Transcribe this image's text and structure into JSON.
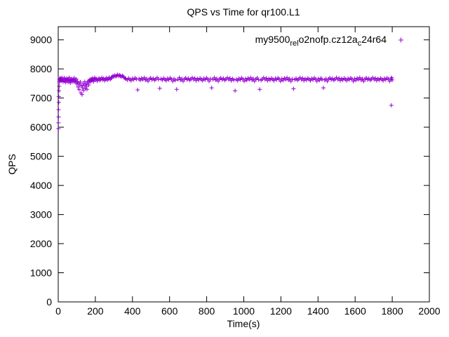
{
  "chart": {
    "title": "QPS vs Time for qr100.L1",
    "xlabel": "Time(s)",
    "ylabel": "QPS"
  },
  "chart_data": {
    "type": "scatter",
    "title": "QPS vs Time for qr100.L1",
    "xlabel": "Time(s)",
    "ylabel": "QPS",
    "xlim": [
      0,
      2000
    ],
    "ylim": [
      0,
      9450
    ],
    "xticks": [
      0,
      200,
      400,
      600,
      800,
      1000,
      1200,
      1400,
      1600,
      1800,
      2000
    ],
    "yticks": [
      0,
      1000,
      2000,
      3000,
      4000,
      5000,
      6000,
      7000,
      8000,
      9000
    ],
    "grid": false,
    "marker": "plus",
    "legend_position": "top-right-inside",
    "legend_parts": [
      {
        "text": "my9500",
        "sub": false
      },
      {
        "text": "rel",
        "sub": true
      },
      {
        "text": "o2nofp.cz12a",
        "sub": false
      },
      {
        "text": "c",
        "sub": true
      },
      {
        "text": "24r64",
        "sub": false
      }
    ],
    "series": [
      {
        "name": "my9500_rel_o2nofp.cz12a_c24r64",
        "color": "#9400D3",
        "points": [
          [
            1,
            5950
          ],
          [
            1,
            6150
          ],
          [
            2,
            6350
          ],
          [
            2,
            6600
          ],
          [
            3,
            6850
          ],
          [
            3,
            7050
          ],
          [
            4,
            7250
          ],
          [
            5,
            7400
          ],
          [
            6,
            7550
          ],
          [
            7,
            7650
          ],
          [
            8,
            7600
          ],
          [
            10,
            7680
          ],
          [
            12,
            7620
          ],
          [
            14,
            7660
          ],
          [
            16,
            7590
          ],
          [
            18,
            7640
          ],
          [
            20,
            7700
          ],
          [
            23,
            7610
          ],
          [
            26,
            7560
          ],
          [
            29,
            7630
          ],
          [
            32,
            7690
          ],
          [
            35,
            7580
          ],
          [
            38,
            7650
          ],
          [
            41,
            7540
          ],
          [
            44,
            7620
          ],
          [
            47,
            7670
          ],
          [
            50,
            7600
          ],
          [
            53,
            7550
          ],
          [
            56,
            7640
          ],
          [
            59,
            7700
          ],
          [
            62,
            7590
          ],
          [
            65,
            7520
          ],
          [
            68,
            7610
          ],
          [
            71,
            7660
          ],
          [
            74,
            7580
          ],
          [
            77,
            7630
          ],
          [
            80,
            7560
          ],
          [
            83,
            7620
          ],
          [
            86,
            7690
          ],
          [
            89,
            7570
          ],
          [
            92,
            7610
          ],
          [
            95,
            7540
          ],
          [
            98,
            7650
          ],
          [
            101,
            7480
          ],
          [
            104,
            7560
          ],
          [
            107,
            7380
          ],
          [
            110,
            7520
          ],
          [
            113,
            7290
          ],
          [
            116,
            7450
          ],
          [
            119,
            7550
          ],
          [
            122,
            7180
          ],
          [
            125,
            7420
          ],
          [
            128,
            7120
          ],
          [
            131,
            7350
          ],
          [
            134,
            7500
          ],
          [
            137,
            7260
          ],
          [
            140,
            7440
          ],
          [
            143,
            7560
          ],
          [
            146,
            7330
          ],
          [
            149,
            7480
          ],
          [
            152,
            7400
          ],
          [
            155,
            7300
          ],
          [
            158,
            7520
          ],
          [
            161,
            7570
          ],
          [
            164,
            7450
          ],
          [
            167,
            7610
          ],
          [
            170,
            7560
          ],
          [
            173,
            7640
          ],
          [
            176,
            7580
          ],
          [
            179,
            7650
          ],
          [
            182,
            7600
          ],
          [
            185,
            7680
          ],
          [
            188,
            7630
          ],
          [
            191,
            7570
          ],
          [
            194,
            7650
          ],
          [
            197,
            7700
          ],
          [
            200,
            7620
          ],
          [
            205,
            7660
          ],
          [
            210,
            7590
          ],
          [
            215,
            7640
          ],
          [
            220,
            7680
          ],
          [
            225,
            7610
          ],
          [
            230,
            7650
          ],
          [
            235,
            7700
          ],
          [
            240,
            7630
          ],
          [
            245,
            7670
          ],
          [
            250,
            7600
          ],
          [
            255,
            7650
          ],
          [
            260,
            7690
          ],
          [
            265,
            7620
          ],
          [
            270,
            7660
          ],
          [
            275,
            7710
          ],
          [
            280,
            7640
          ],
          [
            285,
            7680
          ],
          [
            290,
            7720
          ],
          [
            295,
            7760
          ],
          [
            300,
            7730
          ],
          [
            305,
            7780
          ],
          [
            310,
            7740
          ],
          [
            315,
            7770
          ],
          [
            320,
            7800
          ],
          [
            325,
            7750
          ],
          [
            330,
            7790
          ],
          [
            335,
            7760
          ],
          [
            340,
            7730
          ],
          [
            345,
            7770
          ],
          [
            350,
            7740
          ],
          [
            355,
            7700
          ],
          [
            360,
            7680
          ],
          [
            365,
            7660
          ],
          [
            372,
            7620
          ],
          [
            379,
            7680
          ],
          [
            386,
            7640
          ],
          [
            393,
            7600
          ],
          [
            400,
            7670
          ],
          [
            407,
            7630
          ],
          [
            414,
            7690
          ],
          [
            421,
            7650
          ],
          [
            428,
            7280
          ],
          [
            435,
            7660
          ],
          [
            442,
            7610
          ],
          [
            449,
            7680
          ],
          [
            456,
            7640
          ],
          [
            463,
            7700
          ],
          [
            470,
            7620
          ],
          [
            477,
            7660
          ],
          [
            484,
            7580
          ],
          [
            491,
            7650
          ],
          [
            498,
            7690
          ],
          [
            505,
            7630
          ],
          [
            512,
            7670
          ],
          [
            519,
            7610
          ],
          [
            526,
            7650
          ],
          [
            533,
            7700
          ],
          [
            540,
            7640
          ],
          [
            547,
            7330
          ],
          [
            554,
            7660
          ],
          [
            561,
            7620
          ],
          [
            568,
            7680
          ],
          [
            575,
            7640
          ],
          [
            582,
            7600
          ],
          [
            589,
            7670
          ],
          [
            596,
            7630
          ],
          [
            603,
            7690
          ],
          [
            610,
            7650
          ],
          [
            617,
            7580
          ],
          [
            624,
            7660
          ],
          [
            631,
            7610
          ],
          [
            638,
            7300
          ],
          [
            645,
            7640
          ],
          [
            652,
            7700
          ],
          [
            659,
            7620
          ],
          [
            666,
            7660
          ],
          [
            673,
            7580
          ],
          [
            680,
            7650
          ],
          [
            687,
            7690
          ],
          [
            694,
            7630
          ],
          [
            701,
            7670
          ],
          [
            708,
            7610
          ],
          [
            715,
            7650
          ],
          [
            722,
            7700
          ],
          [
            729,
            7640
          ],
          [
            736,
            7680
          ],
          [
            743,
            7600
          ],
          [
            750,
            7660
          ],
          [
            757,
            7620
          ],
          [
            764,
            7680
          ],
          [
            771,
            7640
          ],
          [
            778,
            7600
          ],
          [
            785,
            7670
          ],
          [
            792,
            7630
          ],
          [
            799,
            7690
          ],
          [
            806,
            7650
          ],
          [
            813,
            7580
          ],
          [
            820,
            7660
          ],
          [
            827,
            7350
          ],
          [
            834,
            7640
          ],
          [
            841,
            7700
          ],
          [
            848,
            7620
          ],
          [
            855,
            7660
          ],
          [
            862,
            7580
          ],
          [
            869,
            7650
          ],
          [
            876,
            7690
          ],
          [
            883,
            7630
          ],
          [
            890,
            7670
          ],
          [
            897,
            7610
          ],
          [
            904,
            7650
          ],
          [
            911,
            7700
          ],
          [
            918,
            7640
          ],
          [
            925,
            7680
          ],
          [
            932,
            7600
          ],
          [
            939,
            7660
          ],
          [
            946,
            7620
          ],
          [
            953,
            7250
          ],
          [
            960,
            7640
          ],
          [
            967,
            7600
          ],
          [
            974,
            7670
          ],
          [
            981,
            7630
          ],
          [
            988,
            7690
          ],
          [
            995,
            7650
          ],
          [
            1002,
            7580
          ],
          [
            1009,
            7660
          ],
          [
            1016,
            7610
          ],
          [
            1023,
            7680
          ],
          [
            1030,
            7640
          ],
          [
            1037,
            7700
          ],
          [
            1044,
            7620
          ],
          [
            1051,
            7660
          ],
          [
            1058,
            7580
          ],
          [
            1065,
            7650
          ],
          [
            1072,
            7690
          ],
          [
            1079,
            7630
          ],
          [
            1086,
            7300
          ],
          [
            1093,
            7610
          ],
          [
            1100,
            7650
          ],
          [
            1107,
            7700
          ],
          [
            1114,
            7640
          ],
          [
            1121,
            7680
          ],
          [
            1128,
            7600
          ],
          [
            1135,
            7660
          ],
          [
            1142,
            7620
          ],
          [
            1149,
            7680
          ],
          [
            1156,
            7640
          ],
          [
            1163,
            7600
          ],
          [
            1170,
            7670
          ],
          [
            1177,
            7630
          ],
          [
            1184,
            7690
          ],
          [
            1191,
            7650
          ],
          [
            1198,
            7580
          ],
          [
            1205,
            7660
          ],
          [
            1212,
            7610
          ],
          [
            1219,
            7680
          ],
          [
            1226,
            7640
          ],
          [
            1233,
            7700
          ],
          [
            1240,
            7620
          ],
          [
            1247,
            7660
          ],
          [
            1254,
            7580
          ],
          [
            1261,
            7650
          ],
          [
            1268,
            7320
          ],
          [
            1275,
            7630
          ],
          [
            1282,
            7670
          ],
          [
            1289,
            7610
          ],
          [
            1296,
            7650
          ],
          [
            1303,
            7700
          ],
          [
            1310,
            7640
          ],
          [
            1317,
            7680
          ],
          [
            1324,
            7600
          ],
          [
            1331,
            7660
          ],
          [
            1338,
            7620
          ],
          [
            1345,
            7680
          ],
          [
            1352,
            7640
          ],
          [
            1359,
            7600
          ],
          [
            1366,
            7670
          ],
          [
            1373,
            7630
          ],
          [
            1380,
            7690
          ],
          [
            1387,
            7650
          ],
          [
            1394,
            7580
          ],
          [
            1401,
            7660
          ],
          [
            1408,
            7610
          ],
          [
            1415,
            7680
          ],
          [
            1422,
            7640
          ],
          [
            1429,
            7350
          ],
          [
            1436,
            7620
          ],
          [
            1443,
            7660
          ],
          [
            1450,
            7580
          ],
          [
            1457,
            7650
          ],
          [
            1464,
            7690
          ],
          [
            1471,
            7630
          ],
          [
            1478,
            7670
          ],
          [
            1485,
            7610
          ],
          [
            1492,
            7650
          ],
          [
            1499,
            7700
          ],
          [
            1506,
            7640
          ],
          [
            1513,
            7680
          ],
          [
            1520,
            7600
          ],
          [
            1527,
            7660
          ],
          [
            1534,
            7620
          ],
          [
            1541,
            7680
          ],
          [
            1548,
            7640
          ],
          [
            1555,
            7600
          ],
          [
            1562,
            7670
          ],
          [
            1569,
            7630
          ],
          [
            1576,
            7690
          ],
          [
            1583,
            7650
          ],
          [
            1590,
            7580
          ],
          [
            1597,
            7660
          ],
          [
            1604,
            7610
          ],
          [
            1611,
            7680
          ],
          [
            1618,
            7640
          ],
          [
            1625,
            7700
          ],
          [
            1632,
            7620
          ],
          [
            1639,
            7660
          ],
          [
            1646,
            7580
          ],
          [
            1653,
            7650
          ],
          [
            1660,
            7690
          ],
          [
            1667,
            7630
          ],
          [
            1674,
            7670
          ],
          [
            1681,
            7610
          ],
          [
            1688,
            7650
          ],
          [
            1695,
            7700
          ],
          [
            1702,
            7640
          ],
          [
            1709,
            7680
          ],
          [
            1716,
            7600
          ],
          [
            1723,
            7660
          ],
          [
            1730,
            7620
          ],
          [
            1737,
            7680
          ],
          [
            1744,
            7640
          ],
          [
            1751,
            7600
          ],
          [
            1758,
            7670
          ],
          [
            1765,
            7630
          ],
          [
            1772,
            7690
          ],
          [
            1779,
            7650
          ],
          [
            1786,
            7580
          ],
          [
            1793,
            7660
          ],
          [
            1795,
            6750
          ],
          [
            1797,
            7700
          ],
          [
            1800,
            7620
          ]
        ]
      }
    ]
  }
}
